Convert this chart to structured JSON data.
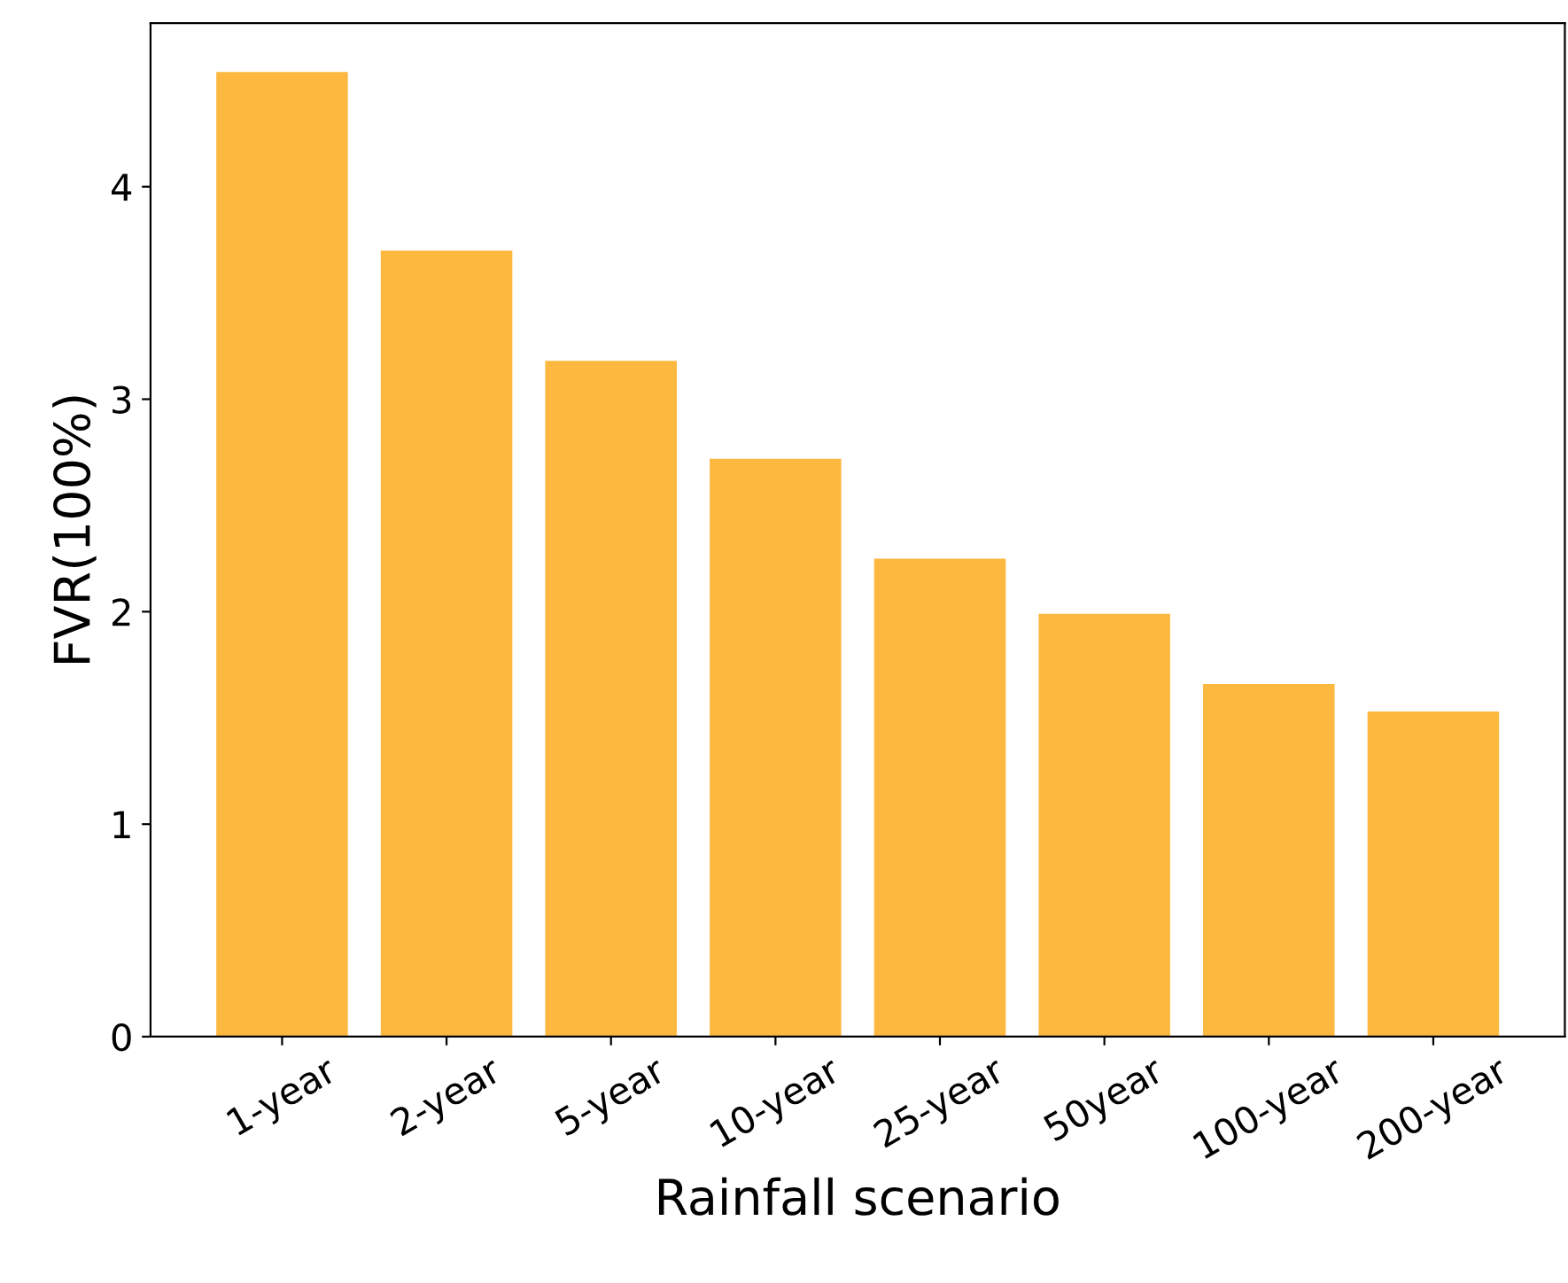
{
  "chart_data": {
    "type": "bar",
    "xlabel": "Rainfall scenario",
    "ylabel": "FVR(100%)",
    "categories": [
      "1-year",
      "2-year",
      "5-year",
      "10-year",
      "25-year",
      "50year",
      "100-year",
      "200-year"
    ],
    "values": [
      4.54,
      3.7,
      3.18,
      2.72,
      2.25,
      1.99,
      1.66,
      1.53
    ],
    "color": "#fdb840",
    "ylim": [
      0,
      4.77
    ],
    "yticks": [
      0,
      1,
      2,
      3,
      4
    ],
    "grid": false
  }
}
